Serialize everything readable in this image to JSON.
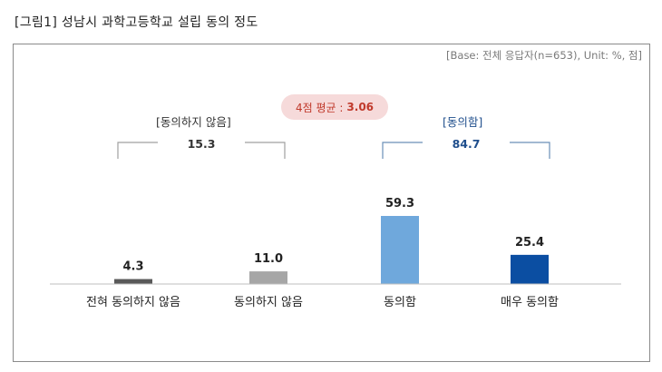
{
  "figure_title": "[그림1] 성남시 과학고등학교 설립 동의 정도",
  "base_note": "[Base: 전체 응답자(n=653), Unit: %, 점]",
  "average": {
    "label": "4점 평균 :",
    "value": "3.06"
  },
  "groups": [
    {
      "label": "[동의하지 않음]",
      "total": "15.3",
      "color": "#8c8c8c",
      "text_color": "#333333"
    },
    {
      "label": "[동의함]",
      "total": "84.7",
      "color": "#6fa8d6",
      "text_color": "#1f4e8c"
    }
  ],
  "chart_data": {
    "type": "bar",
    "categories": [
      "전혀 동의하지 않음",
      "동의하지 않음",
      "동의함",
      "매우 동의함"
    ],
    "values": [
      4.3,
      11.0,
      59.3,
      25.4
    ],
    "value_labels": [
      "4.3",
      "11.0",
      "59.3",
      "25.4"
    ],
    "colors": [
      "#595959",
      "#a6a6a6",
      "#6fa8dc",
      "#0b4ea2"
    ],
    "title": "[그림1] 성남시 과학고등학교 설립 동의 정도",
    "xlabel": "",
    "ylabel": "",
    "ylim": [
      0,
      70
    ],
    "grid": false,
    "legend": "none"
  }
}
